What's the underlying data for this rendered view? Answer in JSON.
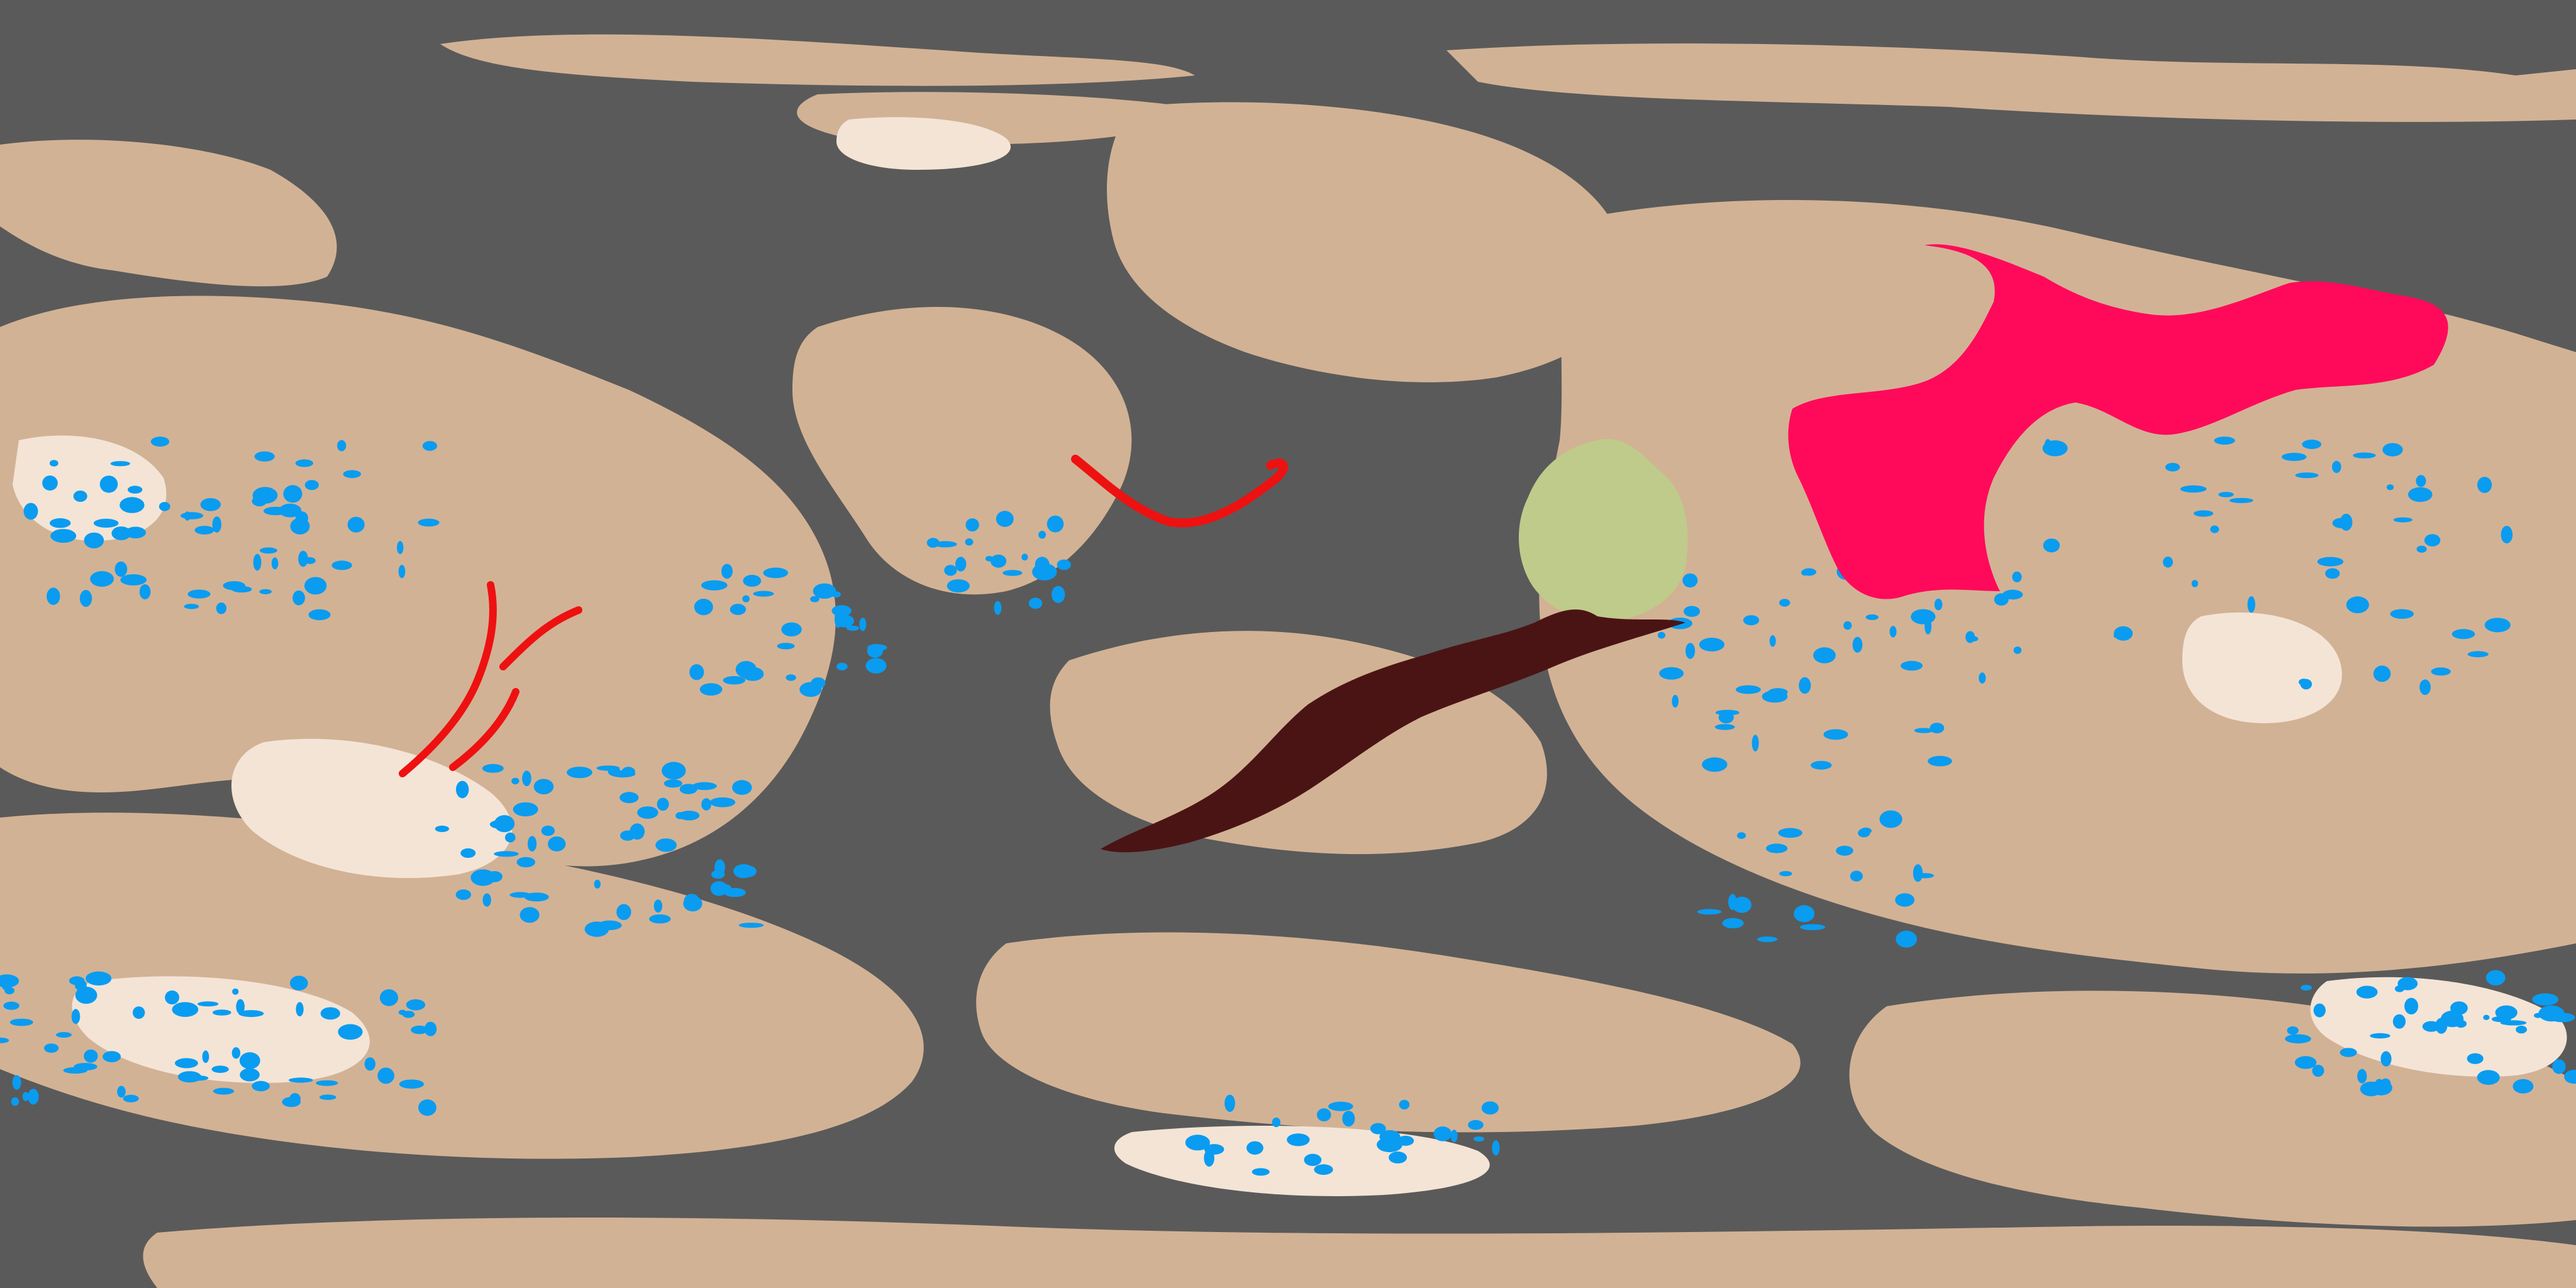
{
  "map": {
    "projection": "equirectangular",
    "palette": {
      "ocean": "#5a5a5a",
      "land": "#d2b295",
      "highland": "#f3e4d6",
      "lake": "#0a9cf0",
      "red_channel": "#ee1111",
      "magenta_region": "#ff0a5a",
      "green_region": "#bfcb8a",
      "dark_brown_feature": "#4b1414"
    },
    "features": [
      {
        "name": "magenta-region",
        "color_key": "magenta_region"
      },
      {
        "name": "green-region",
        "color_key": "green_region"
      },
      {
        "name": "dark-brown-channel",
        "color_key": "dark_brown_feature"
      },
      {
        "name": "red-channel-west",
        "color_key": "red_channel"
      },
      {
        "name": "red-channel-center",
        "color_key": "red_channel"
      }
    ]
  }
}
